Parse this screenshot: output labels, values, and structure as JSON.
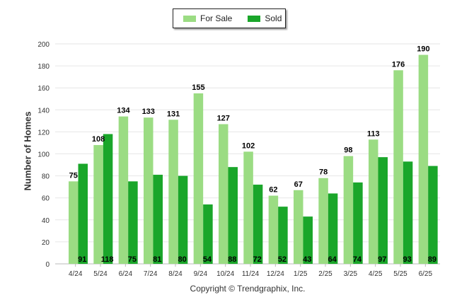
{
  "chart_data": {
    "type": "bar",
    "categories": [
      "4/24",
      "5/24",
      "6/24",
      "7/24",
      "8/24",
      "9/24",
      "10/24",
      "11/24",
      "12/24",
      "1/25",
      "2/25",
      "3/25",
      "4/25",
      "5/25",
      "6/25"
    ],
    "series": [
      {
        "name": "For Sale",
        "color": "#9bdc83",
        "values": [
          75,
          108,
          134,
          133,
          131,
          155,
          127,
          102,
          62,
          67,
          78,
          98,
          113,
          176,
          190
        ]
      },
      {
        "name": "Sold",
        "color": "#1aa62a",
        "values": [
          91,
          118,
          75,
          81,
          80,
          54,
          88,
          72,
          52,
          43,
          64,
          74,
          97,
          93,
          89
        ]
      }
    ],
    "ylabel": "Number of Homes",
    "xlabel": "",
    "ylim": [
      0,
      200
    ],
    "yticks": [
      0,
      20,
      40,
      60,
      80,
      100,
      120,
      140,
      160,
      180,
      200
    ],
    "grid": true,
    "legend_position": "top-center"
  },
  "legend": {
    "for_sale": "For Sale",
    "sold": "Sold"
  },
  "copyright": "Copyright © Trendgraphix, Inc."
}
